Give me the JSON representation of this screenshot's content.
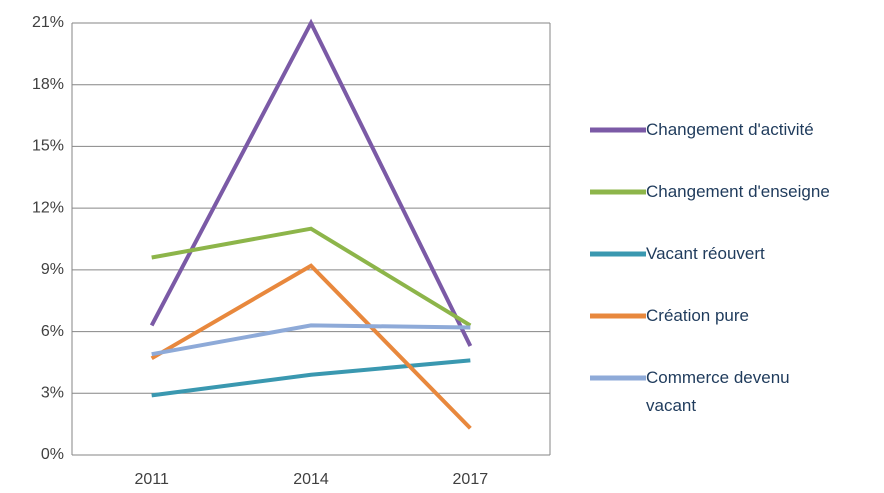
{
  "chart_data": {
    "type": "line",
    "categories": [
      "2011",
      "2014",
      "2017"
    ],
    "series": [
      {
        "name": "Changement d'activité",
        "color": "#7b5aa6",
        "values": [
          6.3,
          21.0,
          5.3
        ]
      },
      {
        "name": "Changement d'enseigne",
        "color": "#8db54a",
        "values": [
          9.6,
          11.0,
          6.3
        ]
      },
      {
        "name": "Vacant réouvert",
        "color": "#3a98b0",
        "values": [
          2.9,
          3.9,
          4.6
        ]
      },
      {
        "name": "Création pure",
        "color": "#e8883d",
        "values": [
          4.7,
          9.2,
          1.3
        ]
      },
      {
        "name": "Commerce devenu vacant",
        "color": "#8eaad8",
        "values": [
          4.9,
          6.3,
          6.2
        ]
      }
    ],
    "ylim": [
      0,
      21
    ],
    "yticks": [
      {
        "value": 0,
        "label": "0%"
      },
      {
        "value": 3,
        "label": "3%"
      },
      {
        "value": 6,
        "label": "6%"
      },
      {
        "value": 9,
        "label": "9%"
      },
      {
        "value": 12,
        "label": "12%"
      },
      {
        "value": 15,
        "label": "15%"
      },
      {
        "value": 18,
        "label": "18%"
      },
      {
        "value": 21,
        "label": "21%"
      }
    ],
    "grid": true,
    "legend": "right"
  }
}
